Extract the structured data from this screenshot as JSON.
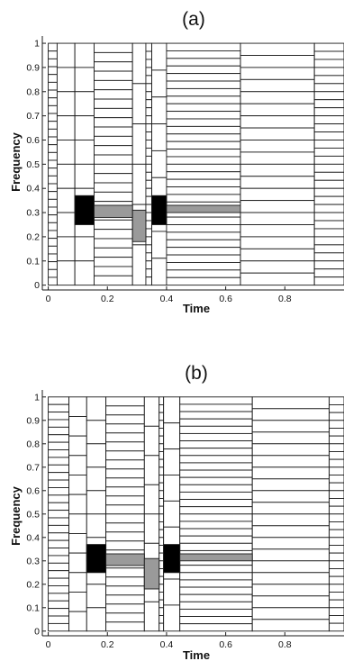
{
  "colors": {
    "ink": "#1a1a1a",
    "dark": "#000000",
    "gray": "#9a9a9a",
    "paper": "#ffffff"
  },
  "chart_data": [
    {
      "type": "heatmap",
      "title": "(a)",
      "xlabel": "Time",
      "ylabel": "Frequency",
      "xlim": [
        -0.02,
        1.0
      ],
      "ylim": [
        -0.02,
        1.03
      ],
      "xticks": [
        "0",
        "0.2",
        "0.4",
        "0.6",
        "0.8"
      ],
      "yticks": [
        "0",
        "0.1",
        "0.2",
        "0.3",
        "0.4",
        "0.5",
        "0.6",
        "0.7",
        "0.8",
        "0.9",
        "1"
      ],
      "grid": false,
      "columns": [
        {
          "t0": 0.0,
          "t1": 0.03,
          "rows": 31
        },
        {
          "t0": 0.03,
          "t1": 0.09,
          "rows": 10
        },
        {
          "t0": 0.09,
          "t1": 0.155,
          "rows": 10
        },
        {
          "t0": 0.155,
          "t1": 0.285,
          "rows": 26
        },
        {
          "t0": 0.285,
          "t1": 0.33,
          "rows": 6
        },
        {
          "t0": 0.33,
          "t1": 0.35,
          "rows": 30
        },
        {
          "t0": 0.35,
          "t1": 0.4,
          "rows": 9
        },
        {
          "t0": 0.4,
          "t1": 0.65,
          "rows": 32
        },
        {
          "t0": 0.65,
          "t1": 0.9,
          "rows": 20
        },
        {
          "t0": 0.9,
          "t1": 1.0,
          "rows": 30
        }
      ],
      "energy": [
        {
          "t0": 0.09,
          "t1": 0.155,
          "f0": 0.25,
          "f1": 0.37,
          "level": "dark"
        },
        {
          "t0": 0.155,
          "t1": 0.285,
          "f0": 0.28,
          "f1": 0.33,
          "level": "gray"
        },
        {
          "t0": 0.285,
          "t1": 0.33,
          "f0": 0.18,
          "f1": 0.31,
          "level": "gray"
        },
        {
          "t0": 0.35,
          "t1": 0.4,
          "f0": 0.25,
          "f1": 0.37,
          "level": "dark"
        },
        {
          "t0": 0.4,
          "t1": 0.65,
          "f0": 0.3,
          "f1": 0.33,
          "level": "gray"
        }
      ]
    },
    {
      "type": "heatmap",
      "title": "(b)",
      "xlabel": "Time",
      "ylabel": "Frequency",
      "xlim": [
        -0.02,
        1.0
      ],
      "ylim": [
        -0.02,
        1.03
      ],
      "xticks": [
        "0",
        "0.2",
        "0.4",
        "0.6",
        "0.8"
      ],
      "yticks": [
        "0",
        "0.1",
        "0.2",
        "0.3",
        "0.4",
        "0.5",
        "0.6",
        "0.7",
        "0.8",
        "0.9",
        "1"
      ],
      "grid": false,
      "columns": [
        {
          "t0": 0.0,
          "t1": 0.07,
          "rows": 31
        },
        {
          "t0": 0.07,
          "t1": 0.13,
          "rows": 12
        },
        {
          "t0": 0.13,
          "t1": 0.195,
          "rows": 10
        },
        {
          "t0": 0.195,
          "t1": 0.325,
          "rows": 26
        },
        {
          "t0": 0.325,
          "t1": 0.375,
          "rows": 8
        },
        {
          "t0": 0.375,
          "t1": 0.39,
          "rows": 30
        },
        {
          "t0": 0.39,
          "t1": 0.445,
          "rows": 9
        },
        {
          "t0": 0.445,
          "t1": 0.69,
          "rows": 32
        },
        {
          "t0": 0.69,
          "t1": 0.95,
          "rows": 20
        },
        {
          "t0": 0.95,
          "t1": 1.0,
          "rows": 30
        }
      ],
      "energy": [
        {
          "t0": 0.13,
          "t1": 0.195,
          "f0": 0.25,
          "f1": 0.37,
          "level": "dark"
        },
        {
          "t0": 0.195,
          "t1": 0.325,
          "f0": 0.28,
          "f1": 0.33,
          "level": "gray"
        },
        {
          "t0": 0.325,
          "t1": 0.375,
          "f0": 0.18,
          "f1": 0.31,
          "level": "gray"
        },
        {
          "t0": 0.39,
          "t1": 0.445,
          "f0": 0.25,
          "f1": 0.37,
          "level": "dark"
        },
        {
          "t0": 0.445,
          "t1": 0.69,
          "f0": 0.3,
          "f1": 0.33,
          "level": "gray"
        }
      ]
    }
  ]
}
